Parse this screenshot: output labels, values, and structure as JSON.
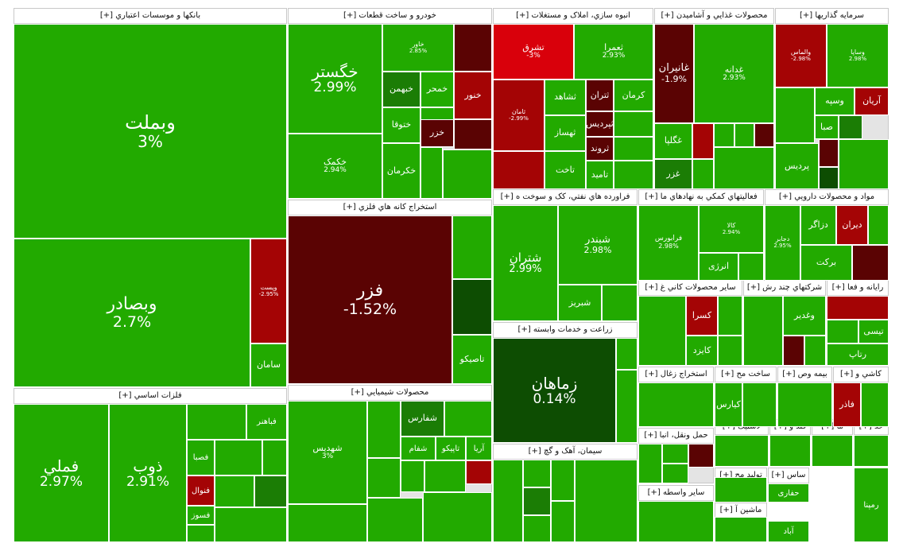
{
  "colors": {
    "up": "#22aa00",
    "up_dark": "#1b7d05",
    "up_deep": "#0d4d02",
    "down": "#a40405",
    "down_bright": "#d9000b",
    "down_deep": "#5a0303",
    "grey": "#d8d8d8"
  },
  "sectors": [
    {
      "title": "بانکها و موسسات اعتباري [+]"
    },
    {
      "title": "خودرو و ساخت قطعات [+]"
    },
    {
      "title": "انبوه سازي، املاک و مستغلات [+]"
    },
    {
      "title": "محصولات غذايي و آشاميدن [+]"
    },
    {
      "title": "سرمايه گذاريها [+]"
    },
    {
      "title": "استخراج کانه هاي فلزي [+]"
    },
    {
      "title": "فراورده هاي نفتي، کک و سوخت ه [+]"
    },
    {
      "title": "فعاليتهاي کمکي به نهادهاي ما [+]"
    },
    {
      "title": "مواد و محصولات دارويي [+]"
    },
    {
      "title": "فلزات اساسي [+]"
    },
    {
      "title": "محصولات شيميايي [+]"
    },
    {
      "title": "زراعت و خدمات وابسته [+]"
    },
    {
      "title": "ساير محصولات کاني غ [+]"
    },
    {
      "title": "شرکتهاي چند رش [+]"
    },
    {
      "title": "رايانه و فعا [+]"
    },
    {
      "title": "استخراج زغال [+]"
    },
    {
      "title": "ساخت مح [+]"
    },
    {
      "title": "بيمه وص [+]"
    },
    {
      "title": "کاشي و [+]"
    },
    {
      "title": "سيمان، آهک و گچ [+]"
    },
    {
      "title": "حمل ونقل، انبا [+]"
    },
    {
      "title": "لاستيک [+]"
    },
    {
      "title": "قند و [+]"
    },
    {
      "title": "ما [+]"
    },
    {
      "title": "خد [+]"
    },
    {
      "title": "توليد مح [+]"
    },
    {
      "title": "ساس [+]"
    },
    {
      "title": "ساير واسطه [+]"
    },
    {
      "title": "ماشين آ [+]"
    },
    {
      "title": "[+]"
    }
  ],
  "tiles": [
    {
      "name": "وبملت",
      "pct": "3%"
    },
    {
      "name": "وبصادر",
      "pct": "2.7%"
    },
    {
      "name": "وپست",
      "pct": "-2.95%"
    },
    {
      "name": "سامان",
      "pct": ""
    },
    {
      "name": "خگستر",
      "pct": "2.99%"
    },
    {
      "name": "خکمک",
      "pct": "2.94%"
    },
    {
      "name": "خاور",
      "pct": "2.85%"
    },
    {
      "name": "خبهمن",
      "pct": ""
    },
    {
      "name": "خمحر",
      "pct": ""
    },
    {
      "name": "ختوقا",
      "pct": ""
    },
    {
      "name": "خکرمان",
      "pct": ""
    },
    {
      "name": "خنور",
      "pct": ""
    },
    {
      "name": "خزر",
      "pct": ""
    },
    {
      "name": "تشرق",
      "pct": "-3%"
    },
    {
      "name": "ثعمرا",
      "pct": "2.93%"
    },
    {
      "name": "ثامان",
      "pct": "-2.99%"
    },
    {
      "name": "ثشاهد",
      "pct": ""
    },
    {
      "name": "ثتران",
      "pct": ""
    },
    {
      "name": "کرمان",
      "pct": ""
    },
    {
      "name": "ثپردیس",
      "pct": ""
    },
    {
      "name": "ثهساز",
      "pct": ""
    },
    {
      "name": "ثروند",
      "pct": ""
    },
    {
      "name": "تاخت",
      "pct": ""
    },
    {
      "name": "تامید",
      "pct": ""
    },
    {
      "name": "غانیران",
      "pct": "-1.9%"
    },
    {
      "name": "غدانه",
      "pct": "2.93%"
    },
    {
      "name": "غگلپا",
      "pct": ""
    },
    {
      "name": "غزر",
      "pct": ""
    },
    {
      "name": "والماس",
      "pct": "-2.98%"
    },
    {
      "name": "وساپا",
      "pct": "2.98%"
    },
    {
      "name": "وسپه",
      "pct": ""
    },
    {
      "name": "آریان",
      "pct": ""
    },
    {
      "name": "صبا",
      "pct": ""
    },
    {
      "name": "پردیس",
      "pct": ""
    },
    {
      "name": "فزر",
      "pct": "-1.52%"
    },
    {
      "name": "تاصیکو",
      "pct": ""
    },
    {
      "name": "شتران",
      "pct": "2.99%"
    },
    {
      "name": "شبندر",
      "pct": "2.98%"
    },
    {
      "name": "شبریز",
      "pct": ""
    },
    {
      "name": "فرابورس",
      "pct": "2.98%"
    },
    {
      "name": "کالا",
      "pct": "2.94%"
    },
    {
      "name": "انرژی",
      "pct": ""
    },
    {
      "name": "دجابر",
      "pct": "2.95%"
    },
    {
      "name": "دزاگر",
      "pct": ""
    },
    {
      "name": "دیران",
      "pct": ""
    },
    {
      "name": "برکت",
      "pct": ""
    },
    {
      "name": "فملي",
      "pct": "2.97%"
    },
    {
      "name": "ذوب",
      "pct": "2.91%"
    },
    {
      "name": "فباهنر",
      "pct": ""
    },
    {
      "name": "فصبا",
      "pct": ""
    },
    {
      "name": "فنوال",
      "pct": ""
    },
    {
      "name": "فسوز",
      "pct": ""
    },
    {
      "name": "شهدیس",
      "pct": "3%"
    },
    {
      "name": "شفارس",
      "pct": ""
    },
    {
      "name": "شفام",
      "pct": ""
    },
    {
      "name": "تاپیکو",
      "pct": ""
    },
    {
      "name": "آریا",
      "pct": ""
    },
    {
      "name": "زماهان",
      "pct": "0.14%"
    },
    {
      "name": "کسرا",
      "pct": ""
    },
    {
      "name": "کایزد",
      "pct": ""
    },
    {
      "name": "وغدیر",
      "pct": ""
    },
    {
      "name": "تیسی",
      "pct": ""
    },
    {
      "name": "رتاپ",
      "pct": ""
    },
    {
      "name": "کیارس",
      "pct": ""
    },
    {
      "name": "فاذر",
      "pct": ""
    },
    {
      "name": "حفاری",
      "pct": ""
    },
    {
      "name": "رمپنا",
      "pct": ""
    },
    {
      "name": "آباد",
      "pct": ""
    }
  ]
}
